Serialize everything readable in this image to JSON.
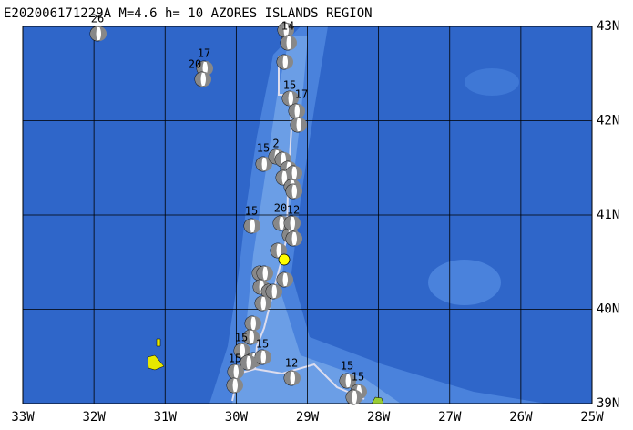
{
  "header": {
    "title": "E202006171229A M=4.6 h= 10 AZORES ISLANDS REGION"
  },
  "lon_labels": [
    "33W",
    "32W",
    "31W",
    "30W",
    "29W",
    "28W",
    "27W",
    "26W",
    "25W"
  ],
  "lat_labels": [
    "43N",
    "42N",
    "41N",
    "40N",
    "39N"
  ],
  "event_labels": [
    "26",
    "17",
    "20",
    "14",
    "15",
    "17",
    "15",
    "2",
    "15",
    "20",
    "12",
    "15",
    "15",
    "15",
    "12",
    "15",
    "15",
    "15"
  ]
}
